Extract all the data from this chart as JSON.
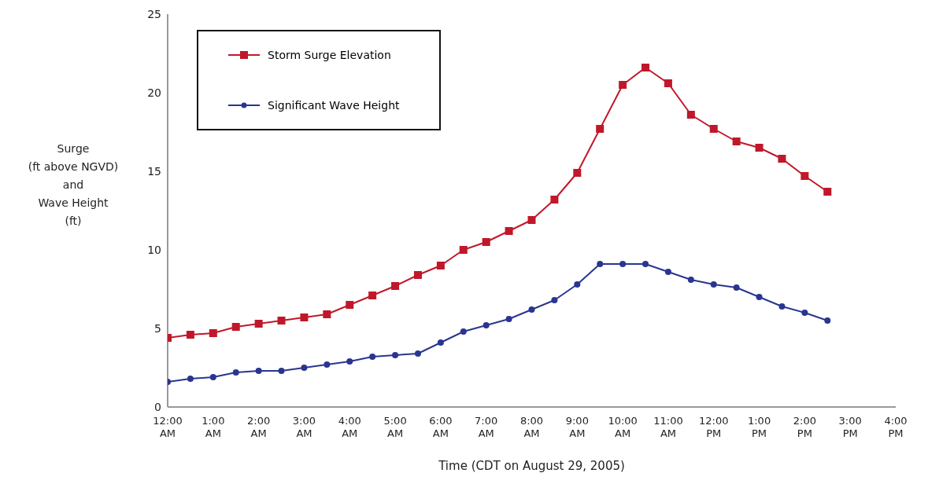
{
  "chart_data": {
    "type": "line",
    "xlabel": "Time  (CDT on August 29, 2005)",
    "ylabel": "Surge\n(ft above NGVD)\nand\nWave Height\n(ft)",
    "x": [
      0,
      0.5,
      1,
      1.5,
      2,
      2.5,
      3,
      3.5,
      4,
      4.5,
      5,
      5.5,
      6,
      6.5,
      7,
      7.5,
      8,
      8.5,
      9,
      9.5,
      10,
      10.5,
      11,
      11.5,
      12,
      12.5,
      13,
      13.5,
      14,
      14.5
    ],
    "series": [
      {
        "name": "Storm Surge Elevation",
        "color": "#c0182a",
        "marker": "square",
        "values": [
          4.4,
          4.6,
          4.7,
          5.1,
          5.3,
          5.5,
          5.7,
          5.9,
          6.5,
          7.1,
          7.7,
          8.4,
          9.0,
          10.0,
          10.5,
          11.2,
          11.9,
          13.2,
          14.9,
          17.7,
          20.5,
          21.6,
          20.6,
          18.6,
          17.7,
          16.9,
          16.5,
          15.8,
          14.7,
          13.7
        ]
      },
      {
        "name": "Significant Wave Height",
        "color": "#2a3590",
        "marker": "circle",
        "values": [
          1.6,
          1.8,
          1.9,
          2.2,
          2.3,
          2.3,
          2.5,
          2.7,
          2.9,
          3.2,
          3.3,
          3.4,
          4.1,
          4.8,
          5.2,
          5.6,
          6.2,
          6.8,
          7.8,
          9.1,
          9.1,
          9.1,
          8.6,
          8.1,
          7.8,
          7.6,
          7.0,
          6.4,
          6.0,
          5.5
        ]
      }
    ],
    "xlim": [
      0,
      16
    ],
    "xticks": [
      {
        "value": 0,
        "label": "12:00 AM"
      },
      {
        "value": 1,
        "label": "1:00 AM"
      },
      {
        "value": 2,
        "label": "2:00 AM"
      },
      {
        "value": 3,
        "label": "3:00 AM"
      },
      {
        "value": 4,
        "label": "4:00 AM"
      },
      {
        "value": 5,
        "label": "5:00 AM"
      },
      {
        "value": 6,
        "label": "6:00 AM"
      },
      {
        "value": 7,
        "label": "7:00 AM"
      },
      {
        "value": 8,
        "label": "8:00 AM"
      },
      {
        "value": 9,
        "label": "9:00 AM"
      },
      {
        "value": 10,
        "label": "10:00 AM"
      },
      {
        "value": 11,
        "label": "11:00 AM"
      },
      {
        "value": 12,
        "label": "12:00 PM"
      },
      {
        "value": 13,
        "label": "1:00 PM"
      },
      {
        "value": 14,
        "label": "2:00 PM"
      },
      {
        "value": 15,
        "label": "3:00 PM"
      },
      {
        "value": 16,
        "label": "4:00 PM"
      }
    ],
    "ylim": [
      0,
      25
    ],
    "yticks": [
      0,
      5,
      10,
      15,
      20,
      25
    ],
    "grid": false,
    "legend": "top left",
    "line_style": "solid"
  }
}
